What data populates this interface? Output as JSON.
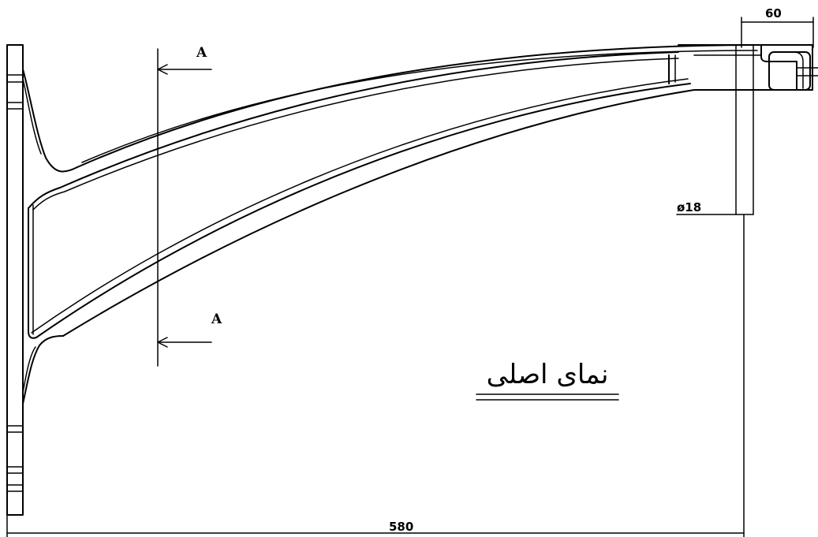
{
  "drawing": {
    "view_title": "نمای اصلی",
    "section_mark_top": "A",
    "section_mark_bottom": "A",
    "dim_width_top": "60",
    "dim_diameter": "ø18",
    "dim_length": "580"
  }
}
